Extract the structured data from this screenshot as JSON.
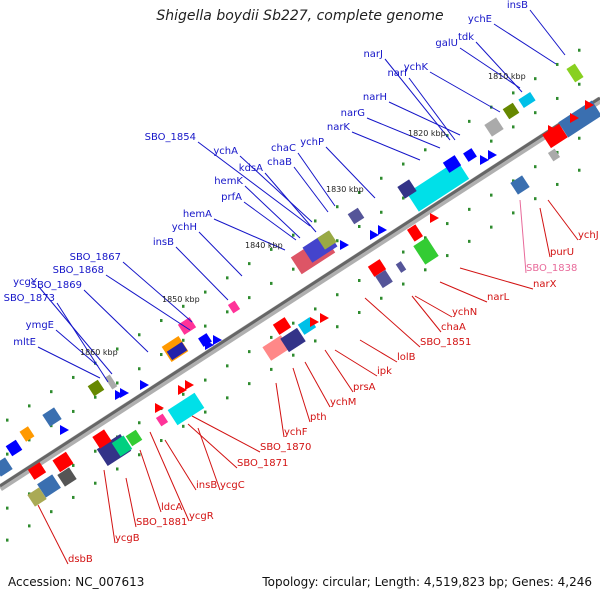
{
  "title": "Shigella boydii Sb227, complete genome",
  "accession": "Accession: NC_007613",
  "stats": "Topology: circular; Length: 4,519,823 bp; Genes: 4,246",
  "kbp_labels": [
    "1810 kbp",
    "1820 kbp",
    "1830 kbp",
    "1840 kbp",
    "1850 kbp",
    "1860 kbp"
  ],
  "blue_labels": [
    "insB",
    "ychE",
    "galU",
    "tdk",
    "ychK",
    "narJ",
    "narI",
    "narH",
    "narG",
    "narK",
    "ychP",
    "chaC",
    "chaB",
    "SBO_1854",
    "ychA",
    "kdsA",
    "hemK",
    "prfA",
    "hemA",
    "ychH",
    "insB",
    "SBO_1867",
    "SBO_1868",
    "SBO_1869",
    "ycgY",
    "SBO_1873",
    "ymgE",
    "mltE"
  ],
  "red_labels": [
    "ychJ",
    "purU",
    "narX",
    "narL",
    "ychN",
    "chaA",
    "SBO_1851",
    "lolB",
    "ipk",
    "prsA",
    "ychM",
    "pth",
    "ychF",
    "SBO_1870",
    "SBO_1871",
    "ycgC",
    "insB",
    "ycgR",
    "ldcA",
    "SBO_1881",
    "ycgB",
    "dsbB"
  ],
  "pink_labels": [
    "SBO_1838"
  ],
  "colors": {
    "forward_gene": "#0000ff",
    "reverse_gene": "#ff0000",
    "backbone": "#777777",
    "blue_label": "#1515c8",
    "red_label": "#d21212",
    "pink_label": "#e86a9a"
  }
}
